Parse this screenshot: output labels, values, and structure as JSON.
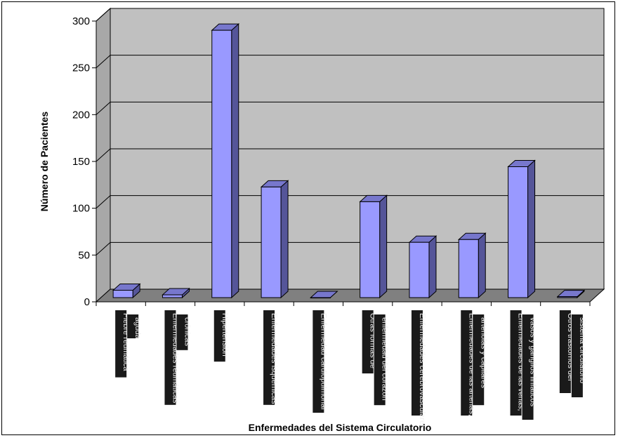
{
  "chart_data": {
    "type": "bar",
    "title": "",
    "xlabel": "Enfermedades del Sistema Circulatorio",
    "ylabel": "Número de Pacientes",
    "ylim": [
      0,
      300
    ],
    "yticks": [
      "0",
      "50",
      "100",
      "150",
      "200",
      "250",
      "300"
    ],
    "categories": [
      "Fiebre reumática aguda",
      "Enfermedades reumáticas crónicas",
      "Hipertensión",
      "Enfermedades isquémicas",
      "Enfermedad cardiopulmonar",
      "Otras formas de enfermedad del corazón",
      "Enfermedades cerebrovasculares",
      "Enfermedades de las arterias, arteriolas y capilares",
      "Enfermedades de las venas, vasos y ganglios linfáticos",
      "Otros trastornos del sistema circulatorio"
    ],
    "values": [
      8,
      3,
      290,
      120,
      0,
      104,
      60,
      63,
      142,
      1
    ],
    "grid": true,
    "legend": "none",
    "colors": {
      "bar_front": "#9999ff",
      "bar_side": "#555599",
      "bar_top": "#7777cc",
      "wall": "#c0c0c0",
      "floor": "#808080",
      "gridline": "#000000"
    }
  }
}
